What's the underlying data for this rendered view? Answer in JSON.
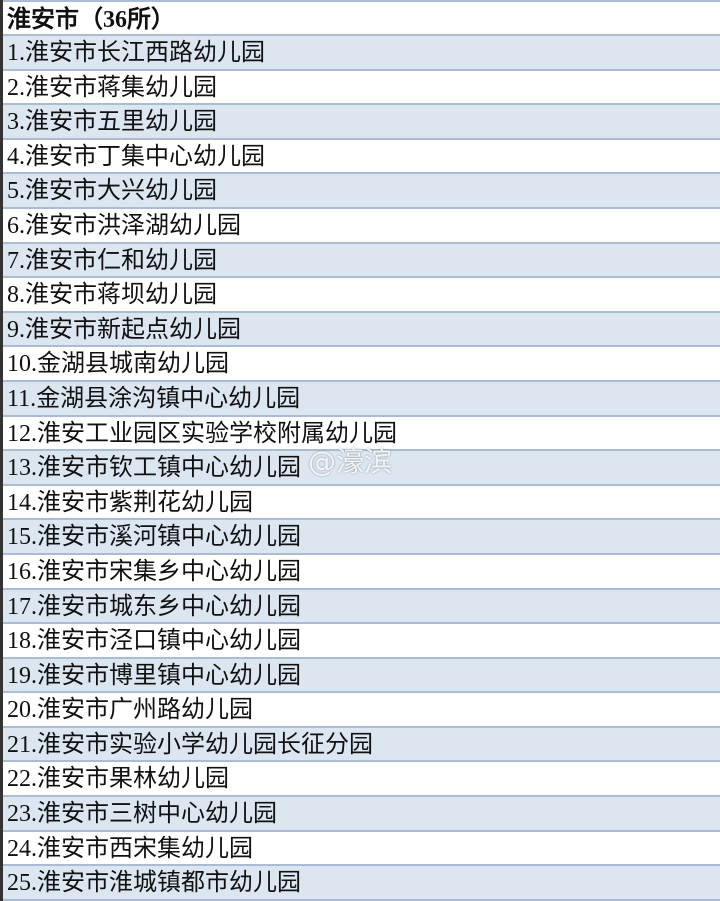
{
  "header": "淮安市（36所）",
  "rows": [
    "1.淮安市长江西路幼儿园",
    "2.淮安市蒋集幼儿园",
    "3.淮安市五里幼儿园",
    "4.淮安市丁集中心幼儿园",
    "5.淮安市大兴幼儿园",
    "6.淮安市洪泽湖幼儿园",
    "7.淮安市仁和幼儿园",
    "8.淮安市蒋坝幼儿园",
    "9.淮安市新起点幼儿园",
    "10.金湖县城南幼儿园",
    "11.金湖县涂沟镇中心幼儿园",
    "12.淮安工业园区实验学校附属幼儿园",
    "13.淮安市钦工镇中心幼儿园",
    "14.淮安市紫荆花幼儿园",
    "15.淮安市溪河镇中心幼儿园",
    "16.淮安市宋集乡中心幼儿园",
    "17.淮安市城东乡中心幼儿园",
    "18.淮安市泾口镇中心幼儿园",
    "19.淮安市博里镇中心幼儿园",
    "20.淮安市广州路幼儿园",
    "21.淮安市实验小学幼儿园长征分园",
    "22.淮安市果林幼儿园",
    "23.淮安市三树中心幼儿园",
    "24.淮安市西宋集幼儿园",
    "25.淮安市淮城镇都市幼儿园"
  ],
  "watermark": "@濠滨",
  "colors": {
    "stripe": "#dce6f1",
    "border": "#a9bcd3"
  }
}
